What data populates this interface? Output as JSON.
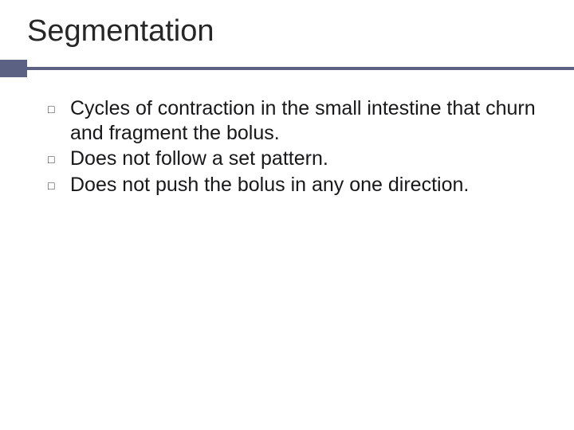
{
  "slide": {
    "title": "Segmentation",
    "title_fontsize": 38,
    "title_color": "#262626",
    "accent_color": "#5a6182",
    "accent_block_width": 34,
    "accent_block_height": 22,
    "rule_thickness": 4,
    "background_color": "#ffffff",
    "bullets": [
      {
        "marker": "□",
        "text": "Cycles of contraction in the small intestine that churn and fragment the bolus."
      },
      {
        "marker": "□",
        "text": "Does not follow a set pattern."
      },
      {
        "marker": "□",
        "text": "Does not push the bolus in any one direction."
      }
    ],
    "body_fontsize": 25,
    "body_color": "#18181a",
    "bullet_marker_color": "#303030"
  }
}
